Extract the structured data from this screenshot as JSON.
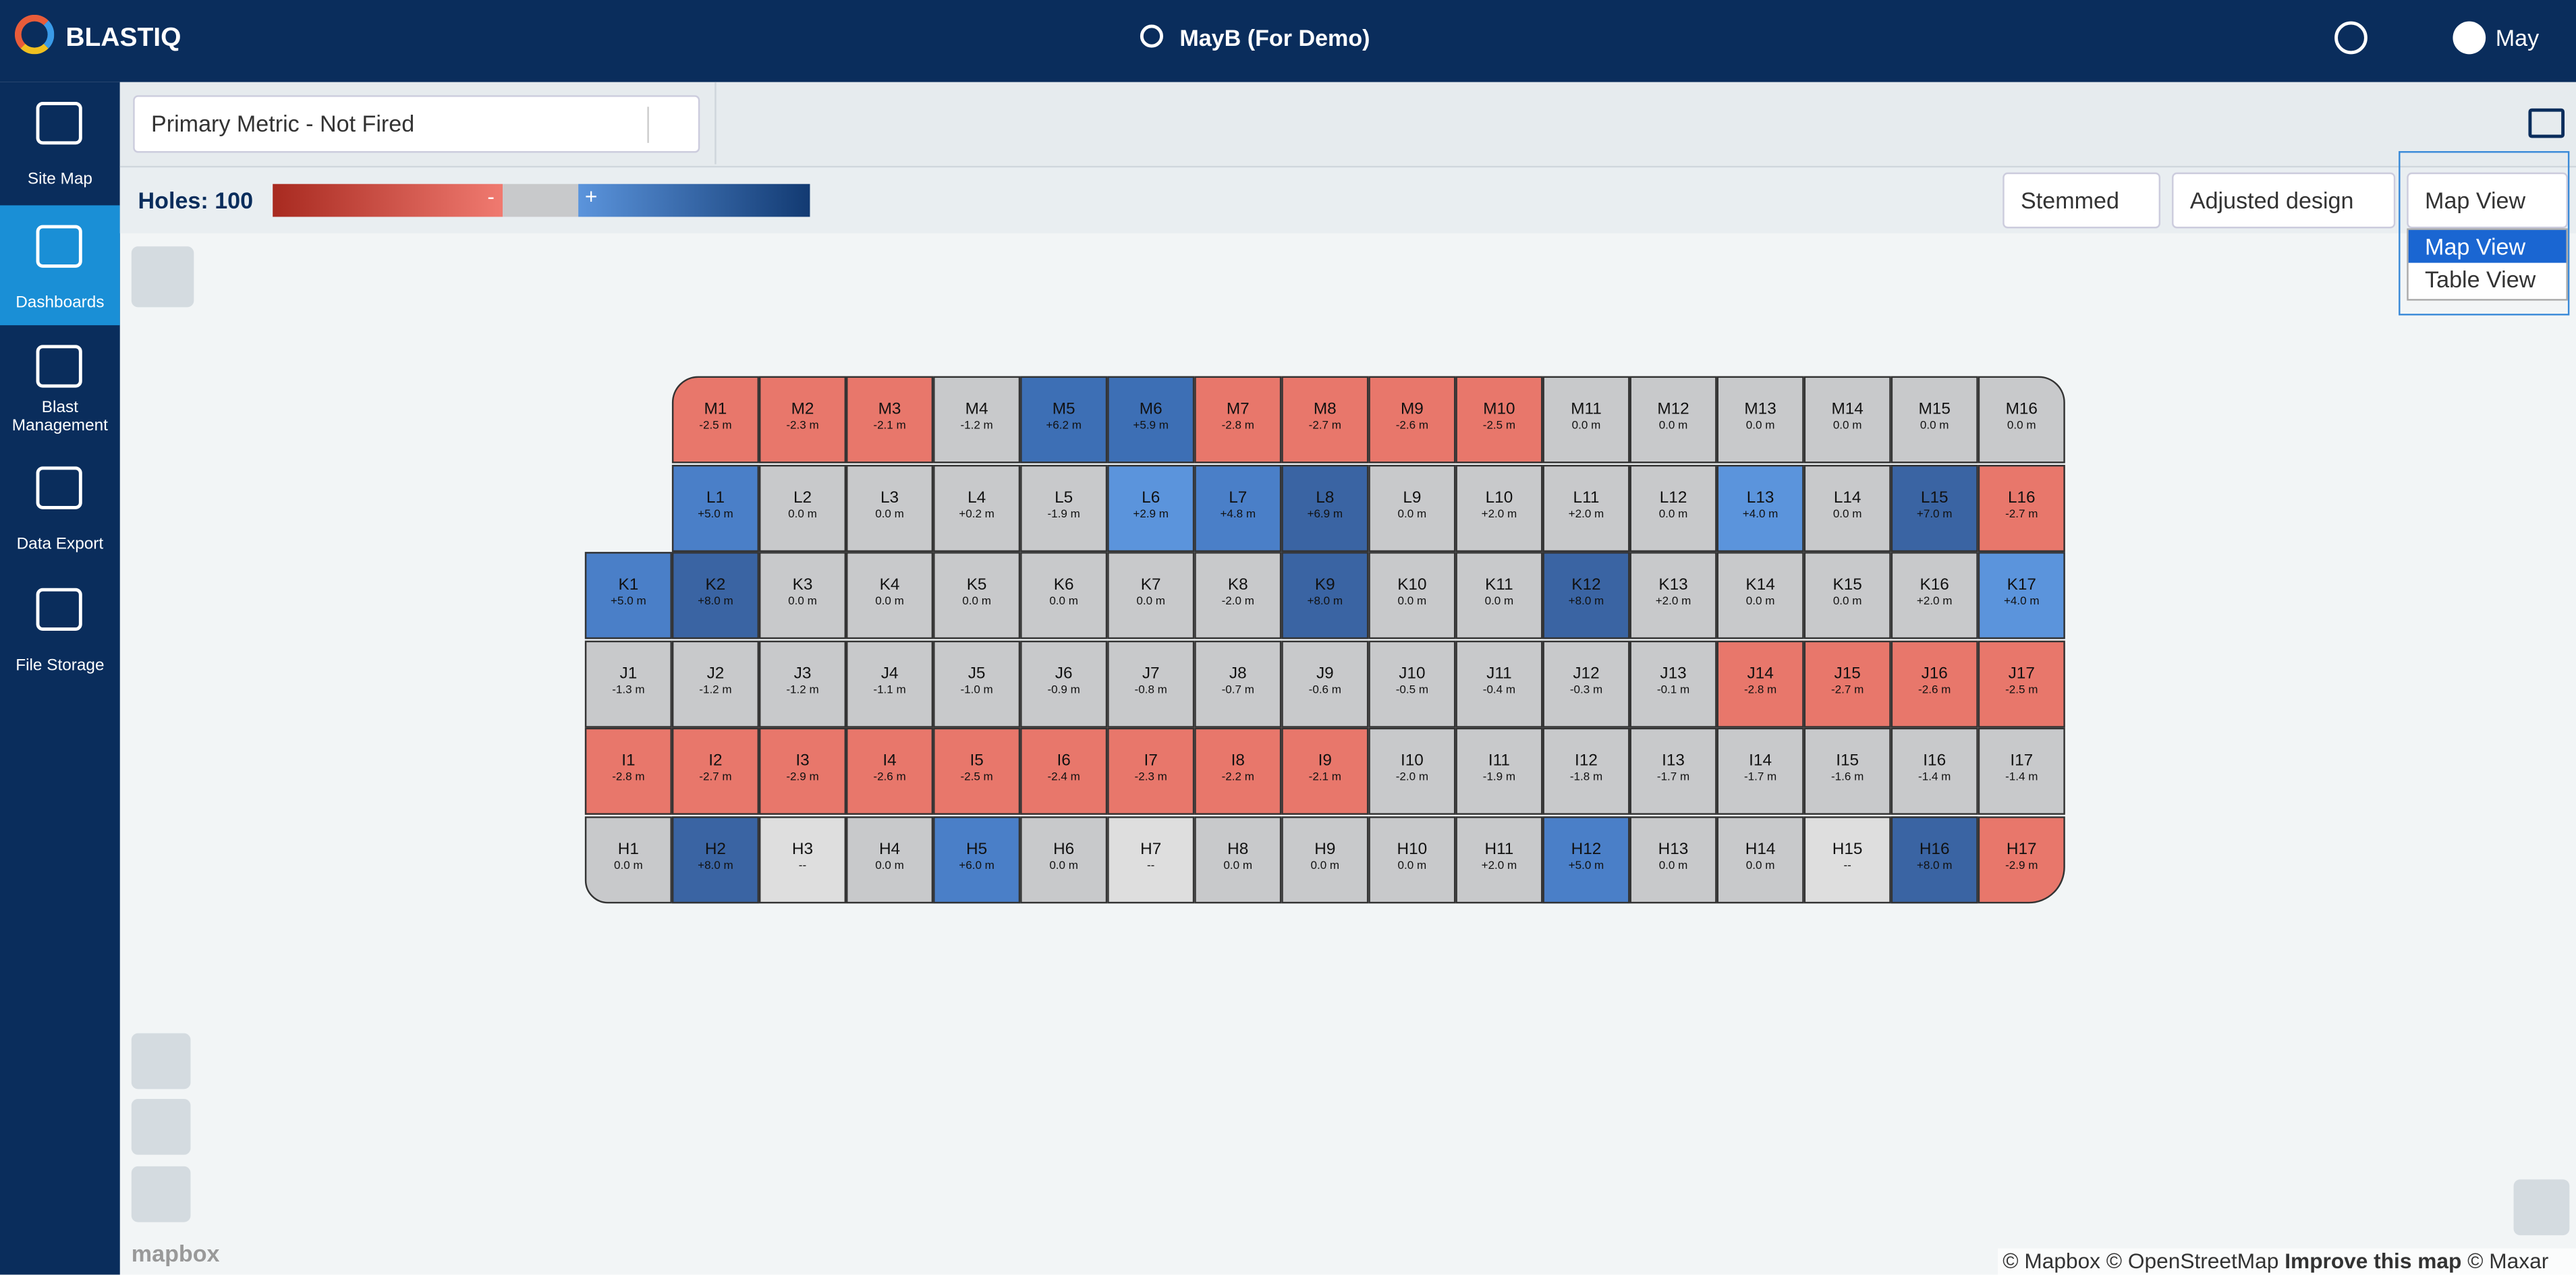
{
  "header": {
    "logo": "BLASTIQ",
    "site": "MayB (For Demo)",
    "user": "May"
  },
  "sidebar": {
    "items": [
      "Site Map",
      "Dashboards",
      "Blast Management",
      "Data Export",
      "File Storage"
    ],
    "active": 1
  },
  "toolbar": {
    "metric": "Primary Metric - Not Fired",
    "holes": "Holes: 100",
    "legend_minus": "-",
    "legend_plus": "+",
    "selects": [
      "Stemmed",
      "Adjusted design",
      "Map View"
    ],
    "options": [
      "Map View",
      "Table View"
    ]
  },
  "footer": {
    "attribution": "© Mapbox © OpenStreetMap",
    "improve": "Improve this map",
    "maxar": "© Maxar",
    "mapbox": "mapbox"
  },
  "grid": {
    "rows": [
      {
        "holes": [
          {
            "label": "M1",
            "value": "-2.5 m",
            "color": "#e8776b"
          },
          {
            "label": "M2",
            "value": "-2.3 m",
            "color": "#e8776b"
          },
          {
            "label": "M3",
            "value": "-2.1 m",
            "color": "#e8776b"
          },
          {
            "label": "M4",
            "value": "-1.2 m",
            "color": "#c8c9cb"
          },
          {
            "label": "M5",
            "value": "+6.2 m",
            "color": "#3d6fb5"
          },
          {
            "label": "M6",
            "value": "+5.9 m",
            "color": "#3d6fb5"
          },
          {
            "label": "M7",
            "value": "-2.8 m",
            "color": "#e8776b"
          },
          {
            "label": "M8",
            "value": "-2.7 m",
            "color": "#e8776b"
          },
          {
            "label": "M9",
            "value": "-2.6 m",
            "color": "#e8776b"
          },
          {
            "label": "M10",
            "value": "-2.5 m",
            "color": "#e8776b"
          },
          {
            "label": "M11",
            "value": "0.0 m",
            "color": "#c8c9cb"
          },
          {
            "label": "M12",
            "value": "0.0 m",
            "color": "#c8c9cb"
          },
          {
            "label": "M13",
            "value": "0.0 m",
            "color": "#c8c9cb"
          },
          {
            "label": "M14",
            "value": "0.0 m",
            "color": "#c8c9cb"
          },
          {
            "label": "M15",
            "value": "0.0 m",
            "color": "#c8c9cb"
          },
          {
            "label": "M16",
            "value": "0.0 m",
            "color": "#c8c9cb"
          }
        ]
      },
      {
        "holes": [
          {
            "label": "L1",
            "value": "+5.0 m",
            "color": "#4a7fc8"
          },
          {
            "label": "L2",
            "value": "0.0 m",
            "color": "#c8c9cb"
          },
          {
            "label": "L3",
            "value": "0.0 m",
            "color": "#c8c9cb"
          },
          {
            "label": "L4",
            "value": "+0.2 m",
            "color": "#c8c9cb"
          },
          {
            "label": "L5",
            "value": "-1.9 m",
            "color": "#c8c9cb"
          },
          {
            "label": "L6",
            "value": "+2.9 m",
            "color": "#5b94dc"
          },
          {
            "label": "L7",
            "value": "+4.8 m",
            "color": "#4a7fc8"
          },
          {
            "label": "L8",
            "value": "+6.9 m",
            "color": "#3a64a3"
          },
          {
            "label": "L9",
            "value": "0.0 m",
            "color": "#c8c9cb"
          },
          {
            "label": "L10",
            "value": "+2.0 m",
            "color": "#c8c9cb"
          },
          {
            "label": "L11",
            "value": "+2.0 m",
            "color": "#c8c9cb"
          },
          {
            "label": "L12",
            "value": "0.0 m",
            "color": "#c8c9cb"
          },
          {
            "label": "L13",
            "value": "+4.0 m",
            "color": "#5b94dc"
          },
          {
            "label": "L14",
            "value": "0.0 m",
            "color": "#c8c9cb"
          },
          {
            "label": "L15",
            "value": "+7.0 m",
            "color": "#3a64a3"
          },
          {
            "label": "L16",
            "value": "-2.7 m",
            "color": "#e8776b"
          }
        ]
      },
      {
        "holes": [
          {
            "label": "K1",
            "value": "+5.0 m",
            "color": "#4a7fc8"
          },
          {
            "label": "K2",
            "value": "+8.0 m",
            "color": "#3a64a3"
          },
          {
            "label": "K3",
            "value": "0.0 m",
            "color": "#c8c9cb"
          },
          {
            "label": "K4",
            "value": "0.0 m",
            "color": "#c8c9cb"
          },
          {
            "label": "K5",
            "value": "0.0 m",
            "color": "#c8c9cb"
          },
          {
            "label": "K6",
            "value": "0.0 m",
            "color": "#c8c9cb"
          },
          {
            "label": "K7",
            "value": "0.0 m",
            "color": "#c8c9cb"
          },
          {
            "label": "K8",
            "value": "-2.0 m",
            "color": "#c8c9cb"
          },
          {
            "label": "K9",
            "value": "+8.0 m",
            "color": "#3a64a3"
          },
          {
            "label": "K10",
            "value": "0.0 m",
            "color": "#c8c9cb"
          },
          {
            "label": "K11",
            "value": "0.0 m",
            "color": "#c8c9cb"
          },
          {
            "label": "K12",
            "value": "+8.0 m",
            "color": "#3a64a3"
          },
          {
            "label": "K13",
            "value": "+2.0 m",
            "color": "#c8c9cb"
          },
          {
            "label": "K14",
            "value": "0.0 m",
            "color": "#c8c9cb"
          },
          {
            "label": "K15",
            "value": "0.0 m",
            "color": "#c8c9cb"
          },
          {
            "label": "K16",
            "value": "+2.0 m",
            "color": "#c8c9cb"
          },
          {
            "label": "K17",
            "value": "+4.0 m",
            "color": "#5b94dc"
          }
        ]
      },
      {
        "holes": [
          {
            "label": "J1",
            "value": "-1.3 m",
            "color": "#c8c9cb"
          },
          {
            "label": "J2",
            "value": "-1.2 m",
            "color": "#c8c9cb"
          },
          {
            "label": "J3",
            "value": "-1.2 m",
            "color": "#c8c9cb"
          },
          {
            "label": "J4",
            "value": "-1.1 m",
            "color": "#c8c9cb"
          },
          {
            "label": "J5",
            "value": "-1.0 m",
            "color": "#c8c9cb"
          },
          {
            "label": "J6",
            "value": "-0.9 m",
            "color": "#c8c9cb"
          },
          {
            "label": "J7",
            "value": "-0.8 m",
            "color": "#c8c9cb"
          },
          {
            "label": "J8",
            "value": "-0.7 m",
            "color": "#c8c9cb"
          },
          {
            "label": "J9",
            "value": "-0.6 m",
            "color": "#c8c9cb"
          },
          {
            "label": "J10",
            "value": "-0.5 m",
            "color": "#c8c9cb"
          },
          {
            "label": "J11",
            "value": "-0.4 m",
            "color": "#c8c9cb"
          },
          {
            "label": "J12",
            "value": "-0.3 m",
            "color": "#c8c9cb"
          },
          {
            "label": "J13",
            "value": "-0.1 m",
            "color": "#c8c9cb"
          },
          {
            "label": "J14",
            "value": "-2.8 m",
            "color": "#e8776b"
          },
          {
            "label": "J15",
            "value": "-2.7 m",
            "color": "#e8776b"
          },
          {
            "label": "J16",
            "value": "-2.6 m",
            "color": "#e8776b"
          },
          {
            "label": "J17",
            "value": "-2.5 m",
            "color": "#e8776b"
          }
        ]
      },
      {
        "holes": [
          {
            "label": "I1",
            "value": "-2.8 m",
            "color": "#e8776b"
          },
          {
            "label": "I2",
            "value": "-2.7 m",
            "color": "#e8776b"
          },
          {
            "label": "I3",
            "value": "-2.9 m",
            "color": "#e8776b"
          },
          {
            "label": "I4",
            "value": "-2.6 m",
            "color": "#e8776b"
          },
          {
            "label": "I5",
            "value": "-2.5 m",
            "color": "#e8776b"
          },
          {
            "label": "I6",
            "value": "-2.4 m",
            "color": "#e8776b"
          },
          {
            "label": "I7",
            "value": "-2.3 m",
            "color": "#e8776b"
          },
          {
            "label": "I8",
            "value": "-2.2 m",
            "color": "#e8776b"
          },
          {
            "label": "I9",
            "value": "-2.1 m",
            "color": "#e8776b"
          },
          {
            "label": "I10",
            "value": "-2.0 m",
            "color": "#c8c9cb"
          },
          {
            "label": "I11",
            "value": "-1.9 m",
            "color": "#c8c9cb"
          },
          {
            "label": "I12",
            "value": "-1.8 m",
            "color": "#c8c9cb"
          },
          {
            "label": "I13",
            "value": "-1.7 m",
            "color": "#c8c9cb"
          },
          {
            "label": "I14",
            "value": "-1.7 m",
            "color": "#c8c9cb"
          },
          {
            "label": "I15",
            "value": "-1.6 m",
            "color": "#c8c9cb"
          },
          {
            "label": "I16",
            "value": "-1.4 m",
            "color": "#c8c9cb"
          },
          {
            "label": "I17",
            "value": "-1.4 m",
            "color": "#c8c9cb"
          }
        ]
      },
      {
        "holes": [
          {
            "label": "H1",
            "value": "0.0 m",
            "color": "#c8c9cb"
          },
          {
            "label": "H2",
            "value": "+8.0 m",
            "color": "#3a64a3"
          },
          {
            "label": "H3",
            "value": "--",
            "color": "#dedede"
          },
          {
            "label": "H4",
            "value": "0.0 m",
            "color": "#c8c9cb"
          },
          {
            "label": "H5",
            "value": "+6.0 m",
            "color": "#4a7fc8"
          },
          {
            "label": "H6",
            "value": "0.0 m",
            "color": "#c8c9cb"
          },
          {
            "label": "H7",
            "value": "--",
            "color": "#dedede"
          },
          {
            "label": "H8",
            "value": "0.0 m",
            "color": "#c8c9cb"
          },
          {
            "label": "H9",
            "value": "0.0 m",
            "color": "#c8c9cb"
          },
          {
            "label": "H10",
            "value": "0.0 m",
            "color": "#c8c9cb"
          },
          {
            "label": "H11",
            "value": "+2.0 m",
            "color": "#c8c9cb"
          },
          {
            "label": "H12",
            "value": "+5.0 m",
            "color": "#4a7fc8"
          },
          {
            "label": "H13",
            "value": "0.0 m",
            "color": "#c8c9cb"
          },
          {
            "label": "H14",
            "value": "0.0 m",
            "color": "#c8c9cb"
          },
          {
            "label": "H15",
            "value": "--",
            "color": "#dedede"
          },
          {
            "label": "H16",
            "value": "+8.0 m",
            "color": "#3a64a3"
          },
          {
            "label": "H17",
            "value": "-2.9 m",
            "color": "#e8776b"
          }
        ]
      }
    ]
  }
}
